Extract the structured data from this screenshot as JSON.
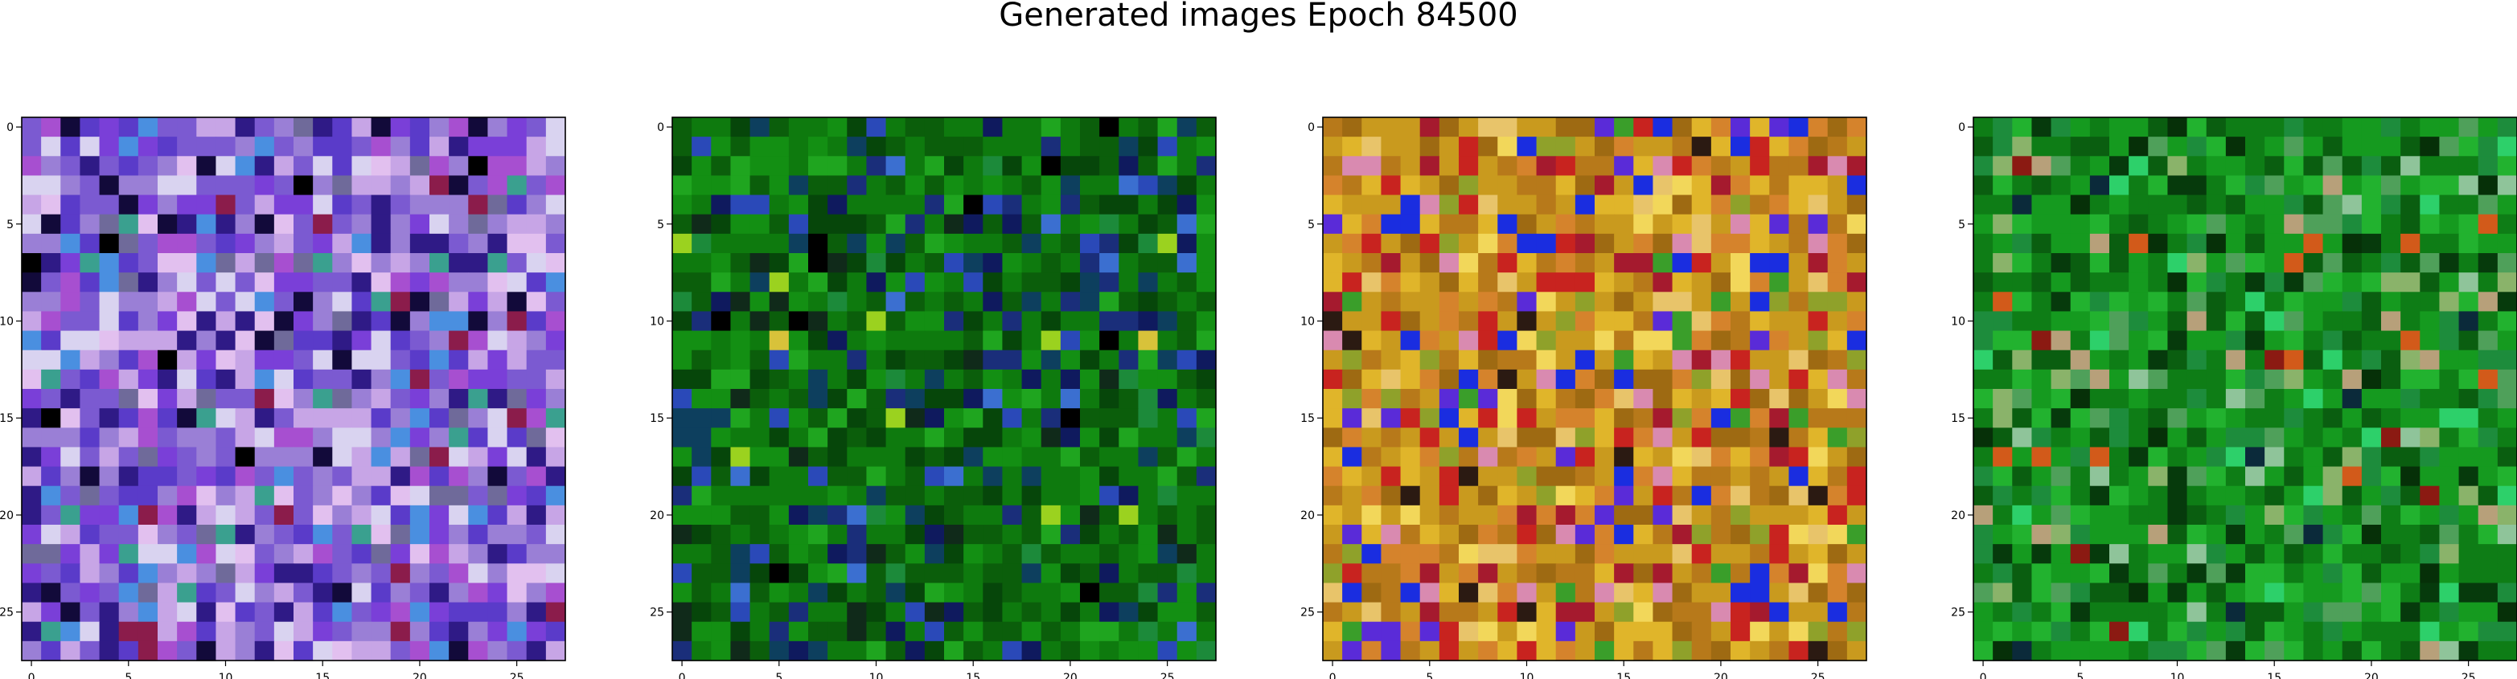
{
  "figure": {
    "title": "Generated images Epoch 84500"
  },
  "chart_data": [
    {
      "type": "heatmap",
      "panel": "image-1",
      "grid": [
        28,
        28
      ],
      "xlim": [
        -0.5,
        27.5
      ],
      "ylim": [
        27.5,
        -0.5
      ],
      "xticks": [
        0,
        5,
        10,
        15,
        20,
        25
      ],
      "yticks": [
        0,
        5,
        10,
        15,
        20,
        25
      ],
      "grid_lines": false,
      "palette": [
        "#9a7fd6",
        "#7b5ad1",
        "#5a3bc9",
        "#2f1a86",
        "#120a3a",
        "#c7a5e6",
        "#d9d3f0",
        "#4a8fe0",
        "#7a3fd8",
        "#a74fd0",
        "#6f6a9a",
        "#3aa08f",
        "#8b1c4b",
        "#e2c0ef",
        "#000000"
      ],
      "weights": [
        12,
        14,
        10,
        9,
        5,
        9,
        7,
        4,
        8,
        6,
        5,
        2,
        2,
        5,
        1
      ],
      "seed": 17
    },
    {
      "type": "heatmap",
      "panel": "image-2",
      "grid": [
        28,
        28
      ],
      "xlim": [
        -0.5,
        27.5
      ],
      "ylim": [
        27.5,
        -0.5
      ],
      "xticks": [
        0,
        5,
        10,
        15,
        20,
        25
      ],
      "yticks": [
        0,
        5,
        10,
        15,
        20,
        25
      ],
      "grid_lines": false,
      "palette": [
        "#0e7a0e",
        "#0b5e0b",
        "#138f13",
        "#06460a",
        "#1fa51f",
        "#0d3f5e",
        "#1a2e7a",
        "#0f1a5e",
        "#2a49b8",
        "#102a1a",
        "#000000",
        "#9bd21f",
        "#d8c23a",
        "#3b6fd0",
        "#1c8a3a"
      ],
      "weights": [
        22,
        18,
        14,
        10,
        6,
        5,
        5,
        4,
        4,
        4,
        1,
        1,
        1,
        2,
        3
      ],
      "seed": 53
    },
    {
      "type": "heatmap",
      "panel": "image-3",
      "grid": [
        28,
        28
      ],
      "xlim": [
        -0.5,
        27.5
      ],
      "ylim": [
        27.5,
        -0.5
      ],
      "xticks": [
        0,
        5,
        10,
        15,
        20,
        25
      ],
      "yticks": [
        0,
        5,
        10,
        15,
        20,
        25
      ],
      "grid_lines": false,
      "palette": [
        "#c99a1e",
        "#b7791a",
        "#e0b52a",
        "#d5832c",
        "#9e6a12",
        "#c8231f",
        "#a51a2e",
        "#1a2de0",
        "#5a2bd8",
        "#e8c46a",
        "#d98ab0",
        "#8fa12a",
        "#3a9e2a",
        "#2b1a12",
        "#f2d75a"
      ],
      "weights": [
        16,
        12,
        10,
        9,
        8,
        6,
        4,
        5,
        4,
        5,
        3,
        4,
        2,
        2,
        4
      ],
      "seed": 91
    },
    {
      "type": "heatmap",
      "panel": "image-4",
      "grid": [
        28,
        28
      ],
      "xlim": [
        -0.5,
        27.5
      ],
      "ylim": [
        27.5,
        -0.5
      ],
      "xticks": [
        0,
        5,
        10,
        15,
        20,
        25
      ],
      "yticks": [
        0,
        5,
        10,
        15,
        20,
        25
      ],
      "grid_lines": false,
      "palette": [
        "#159a1f",
        "#0e7d16",
        "#0a5e10",
        "#22b22f",
        "#1d8c3c",
        "#063a0c",
        "#4fa05a",
        "#8ab36a",
        "#b7a07a",
        "#8b1a12",
        "#d25a1a",
        "#0b2a3a",
        "#2dd06a",
        "#063008",
        "#8fc49a"
      ],
      "weights": [
        20,
        18,
        12,
        10,
        8,
        5,
        5,
        3,
        3,
        1,
        1,
        1,
        3,
        3,
        2
      ],
      "seed": 137
    }
  ]
}
